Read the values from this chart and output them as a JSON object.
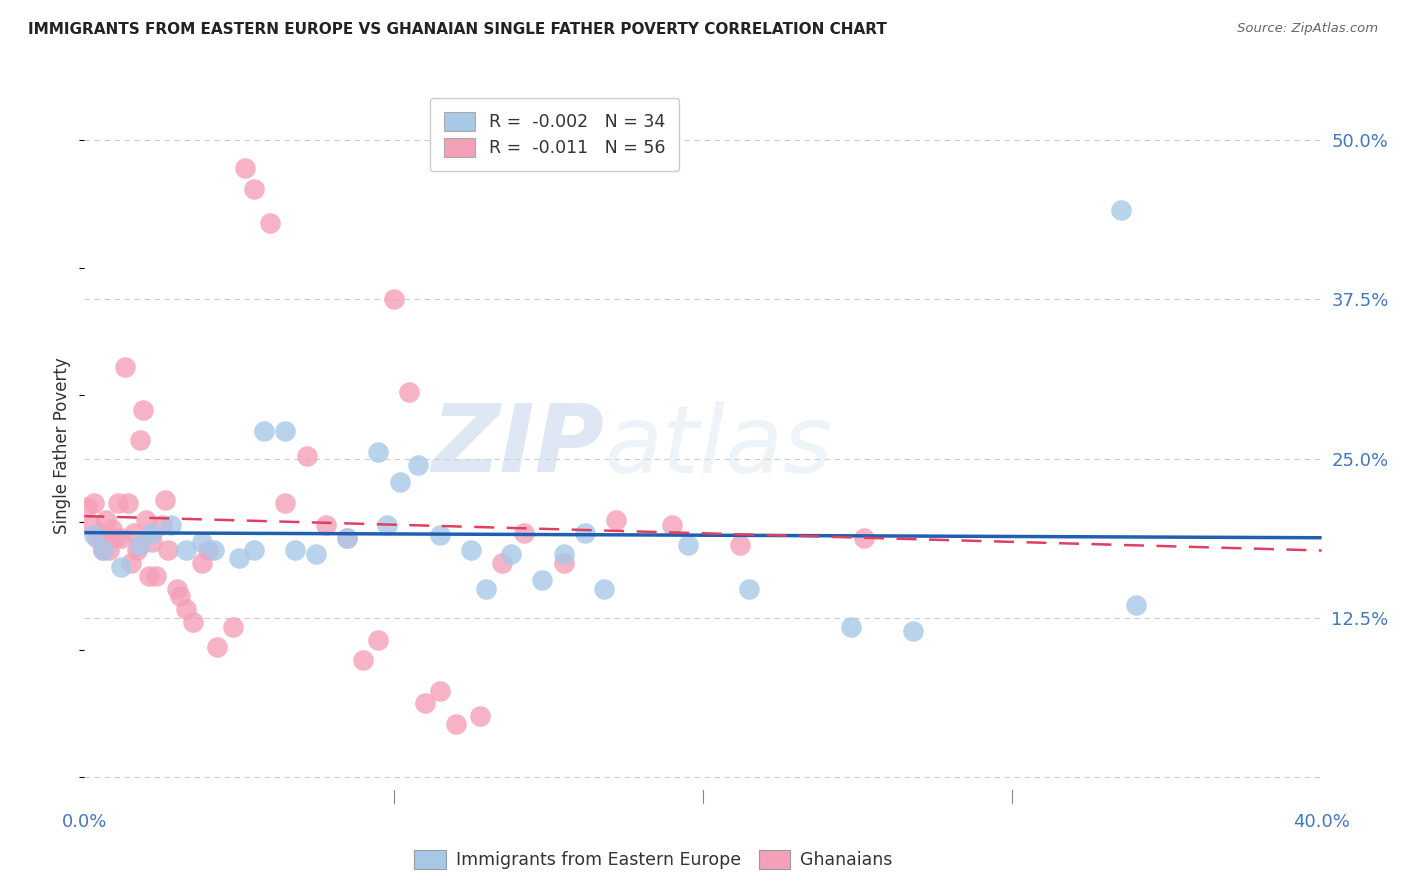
{
  "title": "IMMIGRANTS FROM EASTERN EUROPE VS GHANAIAN SINGLE FATHER POVERTY CORRELATION CHART",
  "source": "Source: ZipAtlas.com",
  "ylabel": "Single Father Poverty",
  "xlim": [
    0.0,
    0.4
  ],
  "ylim": [
    -0.02,
    0.54
  ],
  "ytick_labels": [
    "",
    "12.5%",
    "25.0%",
    "37.5%",
    "50.0%"
  ],
  "ytick_values": [
    0.0,
    0.125,
    0.25,
    0.375,
    0.5
  ],
  "legend_blue_label": "Immigrants from Eastern Europe",
  "legend_pink_label": "Ghanaians",
  "R_blue": "-0.002",
  "N_blue": "34",
  "R_pink": "-0.011",
  "N_pink": "56",
  "blue_color": "#a8c8e8",
  "pink_color": "#f4a0b8",
  "blue_line_color": "#2060b0",
  "pink_line_color": "#e04060",
  "watermark_zip": "ZIP",
  "watermark_atlas": "atlas",
  "blue_scatter_x": [
    0.003,
    0.006,
    0.012,
    0.018,
    0.022,
    0.028,
    0.033,
    0.038,
    0.042,
    0.05,
    0.055,
    0.058,
    0.065,
    0.068,
    0.075,
    0.085,
    0.095,
    0.098,
    0.102,
    0.108,
    0.115,
    0.125,
    0.13,
    0.138,
    0.148,
    0.155,
    0.162,
    0.168,
    0.195,
    0.215,
    0.248,
    0.268,
    0.335,
    0.34
  ],
  "blue_scatter_y": [
    0.19,
    0.178,
    0.165,
    0.182,
    0.192,
    0.198,
    0.178,
    0.185,
    0.178,
    0.172,
    0.178,
    0.272,
    0.272,
    0.178,
    0.175,
    0.188,
    0.255,
    0.198,
    0.232,
    0.245,
    0.19,
    0.178,
    0.148,
    0.175,
    0.155,
    0.175,
    0.192,
    0.148,
    0.182,
    0.148,
    0.118,
    0.115,
    0.445,
    0.135
  ],
  "pink_scatter_x": [
    0.001,
    0.002,
    0.003,
    0.004,
    0.005,
    0.006,
    0.007,
    0.008,
    0.009,
    0.01,
    0.011,
    0.012,
    0.013,
    0.014,
    0.015,
    0.016,
    0.017,
    0.018,
    0.019,
    0.02,
    0.021,
    0.022,
    0.023,
    0.025,
    0.026,
    0.027,
    0.03,
    0.031,
    0.033,
    0.035,
    0.038,
    0.04,
    0.043,
    0.048,
    0.052,
    0.055,
    0.06,
    0.065,
    0.072,
    0.078,
    0.085,
    0.09,
    0.095,
    0.1,
    0.105,
    0.11,
    0.115,
    0.12,
    0.128,
    0.135,
    0.142,
    0.155,
    0.172,
    0.19,
    0.212,
    0.252
  ],
  "pink_scatter_y": [
    0.212,
    0.198,
    0.215,
    0.188,
    0.192,
    0.178,
    0.202,
    0.178,
    0.195,
    0.188,
    0.215,
    0.188,
    0.322,
    0.215,
    0.168,
    0.192,
    0.178,
    0.265,
    0.288,
    0.202,
    0.158,
    0.185,
    0.158,
    0.198,
    0.218,
    0.178,
    0.148,
    0.142,
    0.132,
    0.122,
    0.168,
    0.178,
    0.102,
    0.118,
    0.478,
    0.462,
    0.435,
    0.215,
    0.252,
    0.198,
    0.188,
    0.092,
    0.108,
    0.375,
    0.302,
    0.058,
    0.068,
    0.042,
    0.048,
    0.168,
    0.192,
    0.168,
    0.202,
    0.198,
    0.182,
    0.188
  ],
  "blue_trend_start_y": 0.192,
  "blue_trend_end_y": 0.188,
  "pink_trend_start_y": 0.205,
  "pink_trend_end_y": 0.178
}
